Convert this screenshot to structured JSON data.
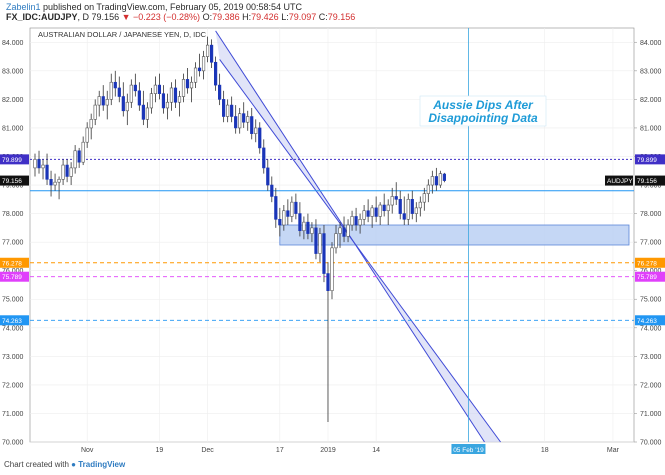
{
  "header": {
    "author": "Zabelin1",
    "published_text": "published on TradingView.com, February 05, 2019 00:58:54 UTC",
    "symbol": "FX_IDC:AUDJPY",
    "interval": "D",
    "price": "79.156",
    "change": "▼ −0.223 (−0.28%)",
    "ohlc_o_label": "O:",
    "ohlc_o": "79.386",
    "ohlc_h_label": "H:",
    "ohlc_h": "79.426",
    "ohlc_l_label": "L:",
    "ohlc_l": "79.097",
    "ohlc_c_label": "C:",
    "ohlc_c": "79.156"
  },
  "footer": {
    "prefix": "Chart created with",
    "brand": "TradingView"
  },
  "colors": {
    "up": "#ffffff",
    "down": "#1a35b8",
    "wick": "#333333",
    "channel_fill": "#c9cdf2",
    "channel_line": "#3f4ad6",
    "zone_fill": "#b7cdf2",
    "zone_line": "#5b86d8",
    "blue_level": "#2196f3",
    "purple_level": "#3f2fc6",
    "orange_level": "#ff9800",
    "magenta_level": "#e040fb",
    "vline": "#3aa6e0",
    "annotation": "#1e9bd7"
  },
  "chart_data": {
    "type": "candlestick",
    "title": "AUSTRALIAN DOLLAR / JAPANESE YEN, D, IDC",
    "ylim": [
      70.0,
      84.5
    ],
    "y_ticks": [
      "84.000",
      "83.000",
      "82.000",
      "81.000",
      "80.000",
      "79.000",
      "78.000",
      "77.000",
      "76.000",
      "75.000",
      "74.000",
      "73.000",
      "72.000",
      "71.000",
      "70.000"
    ],
    "x_tick_labels": [
      "Nov",
      "19",
      "Dec",
      "17",
      "2019",
      "14",
      "18",
      "Mar"
    ],
    "x_tick_days": [
      13,
      31,
      43,
      61,
      73,
      85,
      127,
      144
    ],
    "x_range_days": [
      0,
      148
    ],
    "current_label": "AUDJPY",
    "current_value": "79.156",
    "date_marker_label": "05 Feb '19",
    "date_marker_day": 108,
    "annotation": "Aussie Dips After Disappointing Data",
    "horizontal_levels": [
      {
        "value": 79.899,
        "label": "79.899",
        "style": "dotted",
        "color": "purple_level"
      },
      {
        "value": 78.8,
        "label": "",
        "style": "solid",
        "color": "blue_level"
      },
      {
        "value": 76.278,
        "label": "76.278",
        "style": "dashed",
        "color": "orange_level"
      },
      {
        "value": 75.789,
        "label": "75.789",
        "style": "dashed",
        "color": "magenta_level"
      },
      {
        "value": 74.263,
        "label": "74.263",
        "style": "dashed",
        "color": "blue_level"
      }
    ],
    "support_zone": {
      "day_from": 61,
      "day_to": 148,
      "low": 76.9,
      "high": 77.6
    },
    "channel": {
      "upper": [
        [
          45,
          84.4
        ],
        [
          112,
          70.0
        ]
      ],
      "lower": [
        [
          46,
          83.4
        ],
        [
          116,
          70.0
        ]
      ]
    },
    "candles": [
      {
        "d": 0,
        "o": 79.6,
        "h": 80.1,
        "l": 79.3,
        "c": 79.9
      },
      {
        "d": 1,
        "o": 79.9,
        "h": 80.2,
        "l": 79.4,
        "c": 79.6
      },
      {
        "d": 2,
        "o": 79.6,
        "h": 79.9,
        "l": 79.2,
        "c": 79.7
      },
      {
        "d": 3,
        "o": 79.7,
        "h": 80.1,
        "l": 79.0,
        "c": 79.2
      },
      {
        "d": 4,
        "o": 79.2,
        "h": 79.5,
        "l": 78.6,
        "c": 79.0
      },
      {
        "d": 5,
        "o": 79.0,
        "h": 79.4,
        "l": 78.8,
        "c": 79.1
      },
      {
        "d": 6,
        "o": 79.1,
        "h": 79.3,
        "l": 78.5,
        "c": 79.2
      },
      {
        "d": 7,
        "o": 79.2,
        "h": 79.9,
        "l": 79.0,
        "c": 79.7
      },
      {
        "d": 8,
        "o": 79.7,
        "h": 79.9,
        "l": 79.1,
        "c": 79.3
      },
      {
        "d": 9,
        "o": 79.3,
        "h": 79.8,
        "l": 79.0,
        "c": 79.6
      },
      {
        "d": 10,
        "o": 79.6,
        "h": 80.4,
        "l": 79.4,
        "c": 80.2
      },
      {
        "d": 11,
        "o": 80.2,
        "h": 80.3,
        "l": 79.6,
        "c": 79.8
      },
      {
        "d": 12,
        "o": 79.8,
        "h": 80.7,
        "l": 79.7,
        "c": 80.5
      },
      {
        "d": 13,
        "o": 80.5,
        "h": 81.2,
        "l": 80.3,
        "c": 81.0
      },
      {
        "d": 14,
        "o": 81.0,
        "h": 81.5,
        "l": 80.6,
        "c": 81.3
      },
      {
        "d": 15,
        "o": 81.3,
        "h": 82.0,
        "l": 81.1,
        "c": 81.8
      },
      {
        "d": 16,
        "o": 81.8,
        "h": 82.3,
        "l": 81.4,
        "c": 82.1
      },
      {
        "d": 17,
        "o": 82.1,
        "h": 82.5,
        "l": 81.6,
        "c": 81.8
      },
      {
        "d": 18,
        "o": 81.8,
        "h": 82.3,
        "l": 81.3,
        "c": 82.0
      },
      {
        "d": 19,
        "o": 82.0,
        "h": 82.9,
        "l": 81.8,
        "c": 82.6
      },
      {
        "d": 20,
        "o": 82.6,
        "h": 83.0,
        "l": 82.1,
        "c": 82.4
      },
      {
        "d": 21,
        "o": 82.4,
        "h": 82.8,
        "l": 81.9,
        "c": 82.1
      },
      {
        "d": 22,
        "o": 82.1,
        "h": 82.6,
        "l": 81.4,
        "c": 81.6
      },
      {
        "d": 23,
        "o": 81.6,
        "h": 82.2,
        "l": 81.1,
        "c": 81.9
      },
      {
        "d": 24,
        "o": 81.9,
        "h": 82.7,
        "l": 81.7,
        "c": 82.5
      },
      {
        "d": 25,
        "o": 82.5,
        "h": 82.9,
        "l": 82.1,
        "c": 82.3
      },
      {
        "d": 26,
        "o": 82.3,
        "h": 82.6,
        "l": 81.6,
        "c": 81.8
      },
      {
        "d": 27,
        "o": 81.8,
        "h": 82.3,
        "l": 81.1,
        "c": 81.3
      },
      {
        "d": 28,
        "o": 81.3,
        "h": 81.9,
        "l": 81.0,
        "c": 81.7
      },
      {
        "d": 29,
        "o": 81.7,
        "h": 82.4,
        "l": 81.5,
        "c": 82.2
      },
      {
        "d": 30,
        "o": 82.2,
        "h": 82.8,
        "l": 81.9,
        "c": 82.5
      },
      {
        "d": 31,
        "o": 82.5,
        "h": 82.9,
        "l": 82.0,
        "c": 82.2
      },
      {
        "d": 32,
        "o": 82.2,
        "h": 82.5,
        "l": 81.5,
        "c": 81.7
      },
      {
        "d": 33,
        "o": 81.7,
        "h": 82.2,
        "l": 81.3,
        "c": 81.9
      },
      {
        "d": 34,
        "o": 81.9,
        "h": 82.6,
        "l": 81.6,
        "c": 82.4
      },
      {
        "d": 35,
        "o": 82.4,
        "h": 82.7,
        "l": 81.7,
        "c": 81.9
      },
      {
        "d": 36,
        "o": 81.9,
        "h": 82.3,
        "l": 81.4,
        "c": 82.1
      },
      {
        "d": 37,
        "o": 82.1,
        "h": 82.9,
        "l": 81.9,
        "c": 82.7
      },
      {
        "d": 38,
        "o": 82.7,
        "h": 83.1,
        "l": 82.2,
        "c": 82.4
      },
      {
        "d": 39,
        "o": 82.4,
        "h": 82.8,
        "l": 81.9,
        "c": 82.6
      },
      {
        "d": 40,
        "o": 82.6,
        "h": 83.3,
        "l": 82.4,
        "c": 83.1
      },
      {
        "d": 41,
        "o": 83.1,
        "h": 83.6,
        "l": 82.8,
        "c": 83.0
      },
      {
        "d": 42,
        "o": 83.0,
        "h": 83.7,
        "l": 82.7,
        "c": 83.5
      },
      {
        "d": 43,
        "o": 83.5,
        "h": 84.2,
        "l": 83.3,
        "c": 83.9
      },
      {
        "d": 44,
        "o": 83.9,
        "h": 84.1,
        "l": 83.1,
        "c": 83.3
      },
      {
        "d": 45,
        "o": 83.3,
        "h": 83.5,
        "l": 82.3,
        "c": 82.5
      },
      {
        "d": 46,
        "o": 82.5,
        "h": 82.9,
        "l": 81.8,
        "c": 82.0
      },
      {
        "d": 47,
        "o": 82.0,
        "h": 82.3,
        "l": 81.2,
        "c": 81.4
      },
      {
        "d": 48,
        "o": 81.4,
        "h": 82.0,
        "l": 81.2,
        "c": 81.8
      },
      {
        "d": 49,
        "o": 81.8,
        "h": 82.1,
        "l": 81.2,
        "c": 81.4
      },
      {
        "d": 50,
        "o": 81.4,
        "h": 81.8,
        "l": 80.8,
        "c": 81.0
      },
      {
        "d": 51,
        "o": 81.0,
        "h": 81.7,
        "l": 80.8,
        "c": 81.5
      },
      {
        "d": 52,
        "o": 81.5,
        "h": 81.9,
        "l": 81.0,
        "c": 81.2
      },
      {
        "d": 53,
        "o": 81.2,
        "h": 81.6,
        "l": 80.9,
        "c": 81.4
      },
      {
        "d": 54,
        "o": 81.4,
        "h": 81.7,
        "l": 80.6,
        "c": 80.8
      },
      {
        "d": 55,
        "o": 80.8,
        "h": 81.3,
        "l": 80.5,
        "c": 81.0
      },
      {
        "d": 56,
        "o": 81.0,
        "h": 81.2,
        "l": 80.1,
        "c": 80.3
      },
      {
        "d": 57,
        "o": 80.3,
        "h": 80.6,
        "l": 79.4,
        "c": 79.6
      },
      {
        "d": 58,
        "o": 79.6,
        "h": 79.9,
        "l": 78.8,
        "c": 79.0
      },
      {
        "d": 59,
        "o": 79.0,
        "h": 79.3,
        "l": 78.4,
        "c": 78.6
      },
      {
        "d": 60,
        "o": 78.6,
        "h": 78.9,
        "l": 77.5,
        "c": 77.8
      },
      {
        "d": 61,
        "o": 77.8,
        "h": 78.2,
        "l": 77.2,
        "c": 77.6
      },
      {
        "d": 62,
        "o": 77.6,
        "h": 78.3,
        "l": 77.4,
        "c": 78.1
      },
      {
        "d": 63,
        "o": 78.1,
        "h": 78.5,
        "l": 77.6,
        "c": 77.9
      },
      {
        "d": 64,
        "o": 77.9,
        "h": 78.6,
        "l": 77.7,
        "c": 78.4
      },
      {
        "d": 65,
        "o": 78.4,
        "h": 78.7,
        "l": 77.8,
        "c": 78.0
      },
      {
        "d": 66,
        "o": 78.0,
        "h": 78.4,
        "l": 77.2,
        "c": 77.4
      },
      {
        "d": 67,
        "o": 77.4,
        "h": 77.9,
        "l": 77.1,
        "c": 77.7
      },
      {
        "d": 68,
        "o": 77.7,
        "h": 78.0,
        "l": 77.1,
        "c": 77.3
      },
      {
        "d": 69,
        "o": 77.3,
        "h": 77.7,
        "l": 77.0,
        "c": 77.5
      },
      {
        "d": 70,
        "o": 77.5,
        "h": 77.8,
        "l": 76.4,
        "c": 76.6
      },
      {
        "d": 71,
        "o": 76.6,
        "h": 77.5,
        "l": 76.3,
        "c": 77.3
      },
      {
        "d": 72,
        "o": 77.3,
        "h": 77.6,
        "l": 75.6,
        "c": 75.9
      },
      {
        "d": 73,
        "o": 75.9,
        "h": 76.3,
        "l": 70.7,
        "c": 75.3
      },
      {
        "d": 74,
        "o": 75.3,
        "h": 77.0,
        "l": 75.0,
        "c": 76.8
      },
      {
        "d": 75,
        "o": 76.8,
        "h": 77.6,
        "l": 76.6,
        "c": 77.3
      },
      {
        "d": 76,
        "o": 77.3,
        "h": 77.7,
        "l": 76.8,
        "c": 77.5
      },
      {
        "d": 77,
        "o": 77.5,
        "h": 77.9,
        "l": 77.0,
        "c": 77.2
      },
      {
        "d": 78,
        "o": 77.2,
        "h": 77.8,
        "l": 77.0,
        "c": 77.6
      },
      {
        "d": 79,
        "o": 77.6,
        "h": 78.1,
        "l": 77.4,
        "c": 77.9
      },
      {
        "d": 80,
        "o": 77.9,
        "h": 78.2,
        "l": 77.4,
        "c": 77.6
      },
      {
        "d": 81,
        "o": 77.6,
        "h": 78.0,
        "l": 77.3,
        "c": 77.8
      },
      {
        "d": 82,
        "o": 77.8,
        "h": 78.3,
        "l": 77.6,
        "c": 78.1
      },
      {
        "d": 83,
        "o": 78.1,
        "h": 78.5,
        "l": 77.7,
        "c": 77.9
      },
      {
        "d": 84,
        "o": 77.9,
        "h": 78.3,
        "l": 77.5,
        "c": 78.2
      },
      {
        "d": 85,
        "o": 78.2,
        "h": 78.6,
        "l": 77.7,
        "c": 77.9
      },
      {
        "d": 86,
        "o": 77.9,
        "h": 78.4,
        "l": 77.6,
        "c": 78.3
      },
      {
        "d": 87,
        "o": 78.3,
        "h": 78.7,
        "l": 77.9,
        "c": 78.1
      },
      {
        "d": 88,
        "o": 78.1,
        "h": 78.5,
        "l": 77.6,
        "c": 78.3
      },
      {
        "d": 89,
        "o": 78.3,
        "h": 78.9,
        "l": 78.0,
        "c": 78.6
      },
      {
        "d": 90,
        "o": 78.6,
        "h": 79.1,
        "l": 78.3,
        "c": 78.5
      },
      {
        "d": 91,
        "o": 78.5,
        "h": 78.8,
        "l": 77.8,
        "c": 78.0
      },
      {
        "d": 92,
        "o": 78.0,
        "h": 78.6,
        "l": 77.6,
        "c": 77.8
      },
      {
        "d": 93,
        "o": 77.8,
        "h": 78.7,
        "l": 77.6,
        "c": 78.5
      },
      {
        "d": 94,
        "o": 78.5,
        "h": 78.8,
        "l": 77.8,
        "c": 78.0
      },
      {
        "d": 95,
        "o": 78.0,
        "h": 78.4,
        "l": 77.7,
        "c": 78.2
      },
      {
        "d": 96,
        "o": 78.2,
        "h": 78.6,
        "l": 77.9,
        "c": 78.4
      },
      {
        "d": 97,
        "o": 78.4,
        "h": 78.9,
        "l": 78.1,
        "c": 78.7
      },
      {
        "d": 98,
        "o": 78.7,
        "h": 79.2,
        "l": 78.4,
        "c": 79.0
      },
      {
        "d": 99,
        "o": 79.0,
        "h": 79.5,
        "l": 78.7,
        "c": 79.3
      },
      {
        "d": 100,
        "o": 79.3,
        "h": 79.6,
        "l": 78.8,
        "c": 79.0
      },
      {
        "d": 101,
        "o": 79.0,
        "h": 79.5,
        "l": 78.9,
        "c": 79.4
      },
      {
        "d": 102,
        "o": 79.386,
        "h": 79.426,
        "l": 79.097,
        "c": 79.156
      }
    ]
  }
}
